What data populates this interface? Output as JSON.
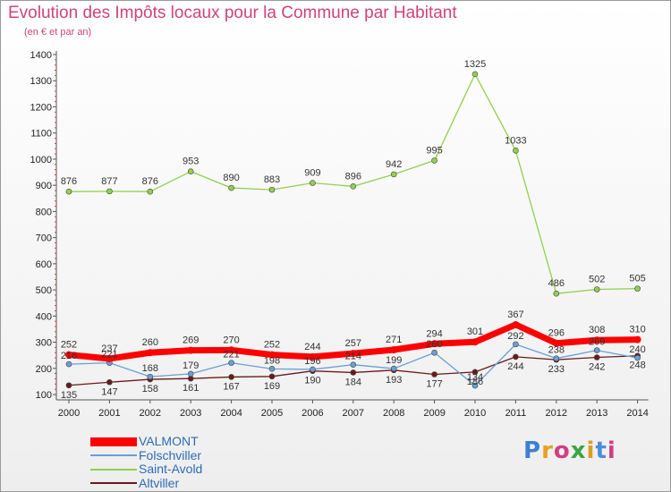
{
  "header": {
    "title": "Evolution des Impôts locaux pour la Commune par Habitant",
    "subtitle": "(en € et par an)"
  },
  "logo": {
    "text": "Proxiti",
    "letter_colors": [
      "#3d7fd3",
      "#e8a020",
      "#d04080",
      "#3aa642",
      "#d8a020",
      "#4a90d9",
      "#d04080"
    ]
  },
  "chart_data": {
    "type": "line",
    "title": "Evolution des Impôts locaux pour la Commune par Habitant",
    "subtitle": "(en € et par an)",
    "xlabel": "",
    "ylabel": "",
    "x": [
      "2000",
      "2001",
      "2002",
      "2003",
      "2004",
      "2005",
      "2006",
      "2007",
      "2008",
      "2009",
      "2010",
      "2011",
      "2012",
      "2013",
      "2014"
    ],
    "yticks": [
      100,
      200,
      300,
      400,
      500,
      600,
      700,
      800,
      900,
      1000,
      1100,
      1200,
      1300,
      1400
    ],
    "ylim": [
      100,
      1400
    ],
    "grid": false,
    "legend_position": "bottom-left",
    "series": [
      {
        "name": "VALMONT",
        "color": "#ff0000",
        "values": [
          252,
          237,
          260,
          269,
          270,
          252,
          244,
          257,
          271,
          294,
          301,
          367,
          296,
          308,
          310
        ]
      },
      {
        "name": "Folschviller",
        "color": "#6a9fd4",
        "values": [
          216,
          221,
          168,
          179,
          221,
          198,
          196,
          214,
          199,
          260,
          134,
          292,
          238,
          269,
          240
        ]
      },
      {
        "name": "Saint-Avold",
        "color": "#92d050",
        "values": [
          876,
          877,
          876,
          953,
          890,
          883,
          909,
          896,
          942,
          995,
          1325,
          1033,
          486,
          502,
          505
        ]
      },
      {
        "name": "Altviller",
        "color": "#6b1a1a",
        "values": [
          135,
          147,
          158,
          161,
          167,
          169,
          190,
          184,
          193,
          177,
          186,
          244,
          233,
          242,
          248
        ]
      }
    ]
  }
}
